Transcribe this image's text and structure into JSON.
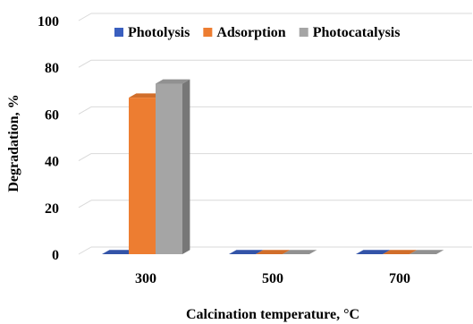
{
  "chart_data": {
    "type": "bar",
    "style": "3d-clustered-column",
    "categories": [
      "300",
      "500",
      "700"
    ],
    "series": [
      {
        "name": "Photolysis",
        "values": [
          0,
          0,
          0
        ],
        "color": "#3A5FBF"
      },
      {
        "name": "Adsorption",
        "values": [
          67,
          0,
          0
        ],
        "color": "#ED7D31"
      },
      {
        "name": "Photocatalysis",
        "values": [
          73,
          0,
          0
        ],
        "color": "#A5A5A5"
      }
    ],
    "ylabel": "Degradation, %",
    "xlabel": "Calcination temperature, °C",
    "ylim": [
      0,
      100
    ],
    "yticks": [
      0,
      20,
      40,
      60,
      80,
      100
    ],
    "ytick_labels": [
      "0",
      "20",
      "40",
      "60",
      "80",
      "100"
    ],
    "grid": true,
    "legend_position": "top"
  }
}
